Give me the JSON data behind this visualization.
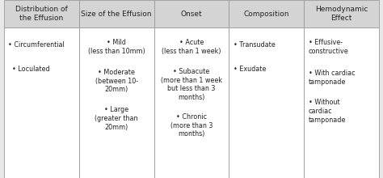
{
  "columns": [
    {
      "header": "Distribution of\nthe Effusion",
      "items": [
        "• Circumferential",
        "  • Loculated"
      ],
      "text_align": "left"
    },
    {
      "header": "Size of the Effusion",
      "items": [
        "• Mild\n(less than 10mm)",
        "• Moderate\n(between 10-\n20mm)",
        "• Large\n(greater than\n20mm)"
      ],
      "text_align": "center"
    },
    {
      "header": "Onset",
      "items": [
        "• Acute\n(less than 1 week)",
        "• Subacute\n(more than 1 week\nbut less than 3\nmonths)",
        "• Chronic\n(more than 3\nmonths)"
      ],
      "text_align": "center"
    },
    {
      "header": "Composition",
      "items": [
        "• Transudate",
        "• Exudate"
      ],
      "text_align": "left"
    },
    {
      "header": "Hemodynamic\nEffect",
      "items": [
        "• Effusive-\nconstructive",
        "• With cardiac\ntamponade",
        "• Without\ncardiac\ntamponade"
      ],
      "text_align": "left"
    }
  ],
  "header_bg": "#d4d4d4",
  "body_bg": "#ffffff",
  "border_color": "#999999",
  "text_color": "#222222",
  "header_fontsize": 6.5,
  "body_fontsize": 5.8,
  "fig_bg": "#e8e8e8",
  "outer_bg": "#e0e0e0"
}
